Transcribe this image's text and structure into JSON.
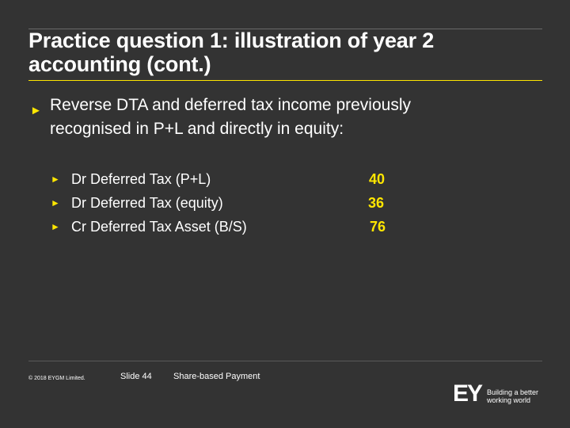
{
  "slide": {
    "title_lines": [
      "Practice question 1: illustration of year 2",
      "accounting (cont.)"
    ],
    "main_bullet_lines": [
      "Reverse DTA and deferred tax income previously",
      "recognised in P+L and directly in equity:"
    ],
    "entries": [
      {
        "label": "Dr Deferred Tax (P+L)",
        "amount": "40"
      },
      {
        "label": "Dr Deferred Tax (equity)",
        "amount": "36"
      },
      {
        "label": "Cr Deferred Tax Asset (B/S)",
        "amount": "76"
      }
    ],
    "bullet_icon": "triangle-right-icon"
  },
  "footer": {
    "copyright": "© 2018 EYGM Limited.",
    "slide_number": "Slide 44",
    "topic": "Share-based Payment",
    "logo_text": "EY",
    "tagline_lines": [
      "Building a better",
      "working world"
    ]
  },
  "colors": {
    "background": "#333333",
    "accent": "#ffe600",
    "text": "#ffffff"
  }
}
